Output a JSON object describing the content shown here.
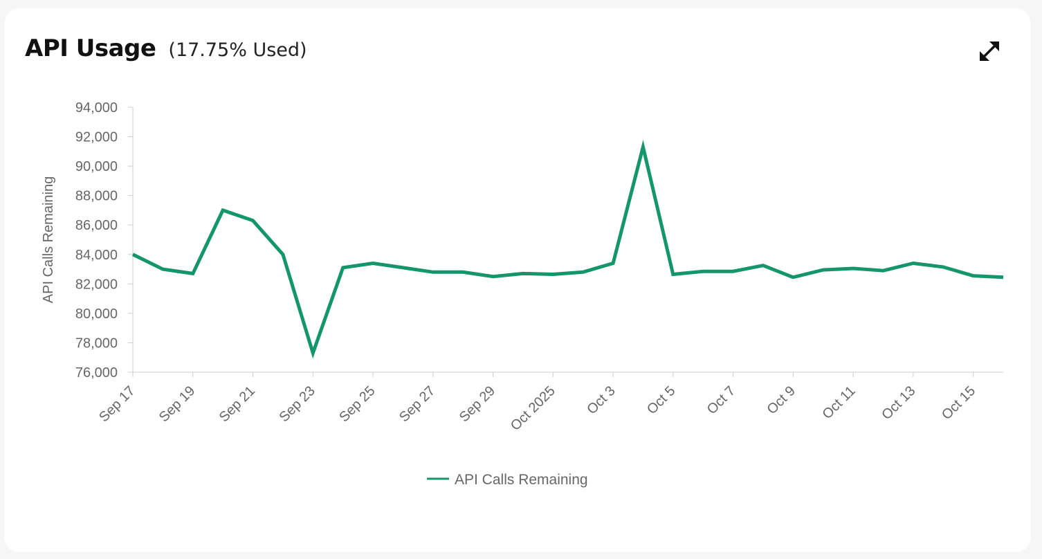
{
  "header": {
    "title": "API Usage",
    "subtitle": "(17.75% Used)"
  },
  "icons": {
    "expand": "expand-arrows-icon"
  },
  "colors": {
    "series": "#15956a",
    "axis": "#cccccc",
    "text": "#666666"
  },
  "chart_data": {
    "type": "line",
    "title": "",
    "xlabel": "",
    "ylabel": "API Calls Remaining",
    "ylim": [
      76000,
      94000
    ],
    "yticks": [
      76000,
      78000,
      80000,
      82000,
      84000,
      86000,
      88000,
      90000,
      92000,
      94000
    ],
    "ytick_labels": [
      "76,000",
      "78,000",
      "80,000",
      "82,000",
      "84,000",
      "86,000",
      "88,000",
      "90,000",
      "92,000",
      "94,000"
    ],
    "xlim": [
      "2025-09-17",
      "2025-10-16"
    ],
    "xticks": [
      "2025-09-17",
      "2025-09-19",
      "2025-09-21",
      "2025-09-23",
      "2025-09-25",
      "2025-09-27",
      "2025-09-29",
      "2025-10-01",
      "2025-10-03",
      "2025-10-05",
      "2025-10-07",
      "2025-10-09",
      "2025-10-11",
      "2025-10-13",
      "2025-10-15"
    ],
    "xtick_labels": [
      "Sep 17",
      "Sep 19",
      "Sep 21",
      "Sep 23",
      "Sep 25",
      "Sep 27",
      "Sep 29",
      "Oct 2025",
      "Oct 3",
      "Oct 5",
      "Oct 7",
      "Oct 9",
      "Oct 11",
      "Oct 13",
      "Oct 15"
    ],
    "grid": false,
    "legend": "bottom-center",
    "series": [
      {
        "name": "API Calls Remaining",
        "color": "#15956a",
        "x": [
          "2025-09-17",
          "2025-09-18",
          "2025-09-19",
          "2025-09-20",
          "2025-09-21",
          "2025-09-22",
          "2025-09-23",
          "2025-09-24",
          "2025-09-25",
          "2025-09-26",
          "2025-09-27",
          "2025-09-28",
          "2025-09-29",
          "2025-09-30",
          "2025-10-01",
          "2025-10-02",
          "2025-10-03",
          "2025-10-04",
          "2025-10-05",
          "2025-10-06",
          "2025-10-07",
          "2025-10-08",
          "2025-10-09",
          "2025-10-10",
          "2025-10-11",
          "2025-10-12",
          "2025-10-13",
          "2025-10-14",
          "2025-10-15",
          "2025-10-16"
        ],
        "values": [
          84000,
          83000,
          82700,
          87000,
          86300,
          84000,
          77300,
          83100,
          83400,
          83100,
          82800,
          82800,
          82500,
          82700,
          82650,
          82800,
          83400,
          91300,
          82650,
          82850,
          82850,
          83250,
          82450,
          82950,
          83050,
          82900,
          83400,
          83150,
          82550,
          82450
        ]
      }
    ]
  }
}
